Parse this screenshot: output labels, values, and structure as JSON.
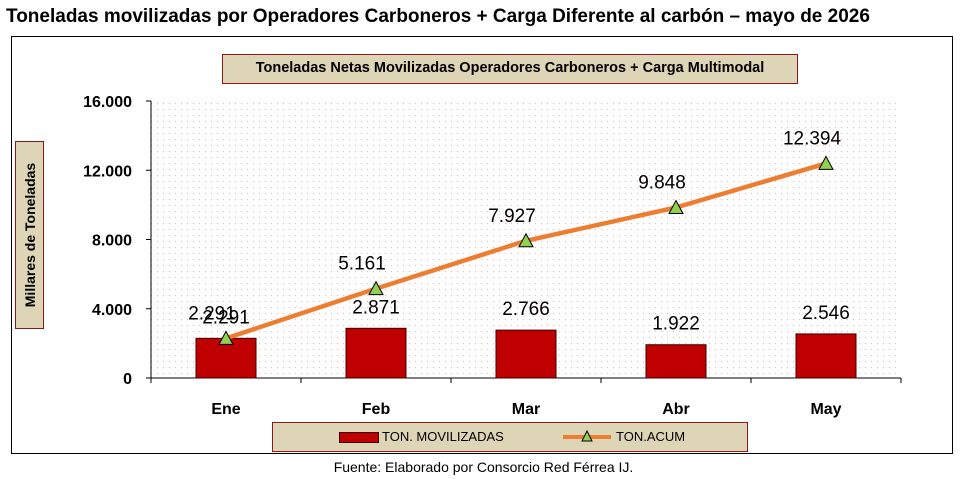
{
  "title": "Toneladas movilizadas por Operadores Carboneros + Carga Diferente al carbón – mayo de 2026",
  "source": "Fuente: Elaborado por Consorcio Red Férrea IJ.",
  "colors": {
    "bar": "#c00000",
    "line": "#ed7d31",
    "marker": "#92d050",
    "panel": "#ddd5b5",
    "panel_border": "#8a1a1a"
  },
  "chart_data": {
    "type": "bar",
    "title": "Toneladas Netas Movilizadas Operadores Carboneros + Carga Multimodal",
    "ylabel": "Millares de Toneladas",
    "xlabel": "",
    "categories": [
      "Ene",
      "Feb",
      "Mar",
      "Abr",
      "May"
    ],
    "ylim": [
      0,
      16000
    ],
    "yticks": [
      0,
      4000,
      8000,
      12000,
      16000
    ],
    "ytick_labels": [
      "0",
      "4.000",
      "8.000",
      "12.000",
      "16.000"
    ],
    "grid": false,
    "legend_position": "bottom",
    "series": [
      {
        "name": "TON. MOVILIZADAS",
        "type": "bar",
        "values": [
          2291,
          2871,
          2766,
          1922,
          2546
        ],
        "labels": [
          "2.291",
          "2.871",
          "2.766",
          "1.922",
          "2.546"
        ]
      },
      {
        "name": "TON.ACUM",
        "type": "line",
        "marker": "triangle",
        "values": [
          2291,
          5161,
          7927,
          9848,
          12394
        ],
        "labels": [
          "2.291",
          "5.161",
          "7.927",
          "9.848",
          "12.394"
        ]
      }
    ]
  }
}
